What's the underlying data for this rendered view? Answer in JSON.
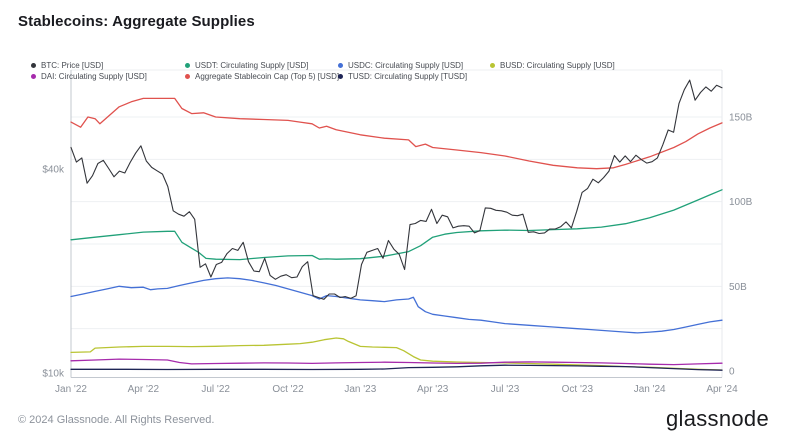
{
  "title": "Stablecoins: Aggregate Supplies",
  "footer": {
    "copyright": "© 2024 Glassnode. All Rights Reserved.",
    "brand": "glassnode"
  },
  "chart_data": {
    "type": "line",
    "title": "Stablecoins: Aggregate Supplies",
    "x_axis": {
      "unit": "months since Jan 2022",
      "range_months": [
        0,
        27
      ],
      "tick_months": [
        0,
        3,
        6,
        9,
        12,
        15,
        18,
        21,
        24,
        27
      ],
      "tick_labels": [
        "Jan '22",
        "Apr '22",
        "Jul '22",
        "Oct '22",
        "Jan '23",
        "Apr '23",
        "Jul '23",
        "Oct '23",
        "Jan '24",
        "Apr '24"
      ],
      "grid": false
    },
    "left_axis": {
      "scale": "log",
      "unit": "USD",
      "ticks": [
        {
          "label": "$40k",
          "value_k": 40
        },
        {
          "label": "$10k",
          "value_k": 10
        }
      ]
    },
    "right_axis": {
      "scale": "linear",
      "unit": "USD billions",
      "ticks": [
        {
          "label": "150B",
          "value_b": 150
        },
        {
          "label": "100B",
          "value_b": 100
        },
        {
          "label": "50B",
          "value_b": 50
        },
        {
          "label": "0",
          "value_b": 0
        }
      ],
      "minor_grid_step_b": 25,
      "grid": true
    },
    "legend_position": "top",
    "series": [
      {
        "name": "BTC: Price [USD]",
        "slug": "btc-price",
        "color": "#33353b",
        "axis": "left",
        "unit": "USD thousands",
        "x_range_months": [
          0,
          27
        ],
        "values": [
          46.3,
          41.9,
          43.1,
          36.3,
          38.2,
          41.5,
          42.4,
          40.1,
          37.9,
          39.4,
          38.9,
          41.8,
          44.5,
          46.8,
          42.2,
          40.4,
          39.5,
          38.6,
          35.5,
          30.1,
          29.4,
          29.0,
          29.9,
          28.4,
          20.5,
          21.0,
          19.2,
          20.9,
          21.2,
          22.5,
          23.3,
          23.0,
          24.3,
          21.3,
          20.0,
          19.9,
          21.8,
          19.4,
          18.9,
          19.3,
          19.5,
          19.1,
          19.2,
          20.6,
          21.3,
          16.9,
          16.7,
          16.5,
          17.1,
          17.1,
          16.7,
          16.8,
          16.6,
          16.9,
          20.9,
          22.7,
          23.0,
          23.3,
          21.8,
          24.6,
          23.2,
          22.4,
          20.2,
          27.4,
          27.6,
          28.2,
          28.0,
          30.4,
          27.6,
          29.2,
          28.9,
          26.8,
          27.1,
          27.2,
          27.1,
          25.9,
          26.3,
          30.7,
          30.6,
          30.2,
          30.1,
          29.8,
          29.2,
          29.1,
          29.4,
          26.0,
          26.1,
          25.8,
          25.9,
          26.6,
          26.6,
          27.0,
          27.9,
          26.8,
          30.0,
          34.1,
          35.0,
          37.3,
          36.4,
          37.7,
          39.4,
          43.8,
          41.9,
          43.7,
          42.0,
          43.9,
          42.6,
          41.6,
          42.0,
          43.1,
          47.1,
          52.1,
          51.3,
          62.4,
          68.5,
          73.1,
          63.8,
          67.2,
          69.8,
          67.8,
          70.6,
          69.4
        ]
      },
      {
        "name": "USDT: Circulating Supply [USD]",
        "slug": "usdt-supply",
        "color": "#21a179",
        "axis": "right",
        "unit": "USD billions",
        "x": [
          0,
          1,
          2,
          3,
          4,
          4.3,
          4.6,
          5,
          5.3,
          5.6,
          6,
          7,
          8,
          9,
          10,
          10.3,
          10.6,
          11,
          12,
          13,
          14,
          14.5,
          15,
          15.5,
          16,
          17,
          18,
          19,
          20,
          21,
          22,
          23,
          24,
          25,
          26,
          26.5,
          27
        ],
        "values": [
          77.5,
          79,
          80.5,
          82,
          82.5,
          82.5,
          76,
          72.5,
          70,
          66.5,
          66,
          65.8,
          67,
          68,
          68.2,
          66,
          66.2,
          66,
          66.3,
          67.8,
          70.5,
          74,
          79,
          80.8,
          81.8,
          82.8,
          83.2,
          83,
          83.5,
          84,
          85,
          87,
          90.5,
          95,
          101,
          104,
          107
        ]
      },
      {
        "name": "USDC: Circulating Supply [USD]",
        "slug": "usdc-supply",
        "color": "#4470d6",
        "axis": "right",
        "unit": "USD billions",
        "x": [
          0,
          0.5,
          1,
          1.5,
          2,
          2.5,
          3,
          3.3,
          3.6,
          4,
          4.5,
          5,
          5.5,
          6,
          6.5,
          7,
          7.5,
          8,
          8.5,
          9,
          9.5,
          10,
          10.3,
          10.6,
          11,
          11.5,
          12,
          12.5,
          13,
          13.5,
          14,
          14.2,
          14.4,
          14.7,
          15,
          15.5,
          16,
          16.5,
          17,
          17.5,
          18,
          19,
          20,
          21,
          21.5,
          22,
          23,
          23.5,
          24,
          24.5,
          25,
          25.5,
          26,
          26.5,
          27
        ],
        "values": [
          44,
          45.5,
          47,
          48.5,
          50,
          49.2,
          49.5,
          48,
          48.5,
          48.8,
          50.5,
          52,
          53.5,
          54.5,
          55,
          54.5,
          53.5,
          52,
          50.5,
          48.5,
          46.5,
          44.5,
          42.5,
          44.5,
          44,
          43,
          42,
          41.5,
          41,
          42,
          42.5,
          43.5,
          38,
          35,
          33.5,
          32.5,
          31.5,
          30.5,
          30,
          29,
          28,
          27,
          26,
          25,
          24.5,
          24,
          23,
          22.5,
          23,
          23.5,
          24.5,
          26,
          27.5,
          29,
          30
        ]
      },
      {
        "name": "BUSD: Circulating Supply [USD]",
        "slug": "busd-supply",
        "color": "#b9c433",
        "axis": "right",
        "unit": "USD billions",
        "x": [
          0,
          0.8,
          1,
          2,
          3,
          4,
          5,
          6,
          7,
          8,
          9,
          9.5,
          10,
          10.5,
          11,
          11.3,
          11.5,
          12,
          12.5,
          13,
          13.5,
          13.8,
          14.2,
          14.5,
          15,
          16,
          17,
          18,
          19,
          20,
          21,
          22,
          23,
          24,
          25,
          26,
          27
        ],
        "values": [
          11,
          11.3,
          13.5,
          14.2,
          14.5,
          14.5,
          14.4,
          14.6,
          15,
          15.2,
          15.8,
          16.2,
          17,
          18.5,
          19.5,
          19,
          17.5,
          14.5,
          14.2,
          14,
          13.8,
          12,
          8.5,
          6.5,
          5.8,
          5.3,
          5,
          4.8,
          4.4,
          4,
          3.6,
          3.2,
          2.6,
          2.2,
          1.6,
          1,
          0.6
        ]
      },
      {
        "name": "DAI: Circulating Supply [USD]",
        "slug": "dai-supply",
        "color": "#a62bac",
        "axis": "right",
        "unit": "USD billions",
        "x": [
          0,
          1,
          2,
          3,
          4,
          4.5,
          5,
          6,
          7,
          8,
          9,
          10,
          11,
          12,
          13,
          14,
          15,
          16,
          17,
          18,
          19,
          20,
          21,
          22,
          23,
          24,
          25,
          26,
          27
        ],
        "values": [
          6,
          6.5,
          7,
          6.8,
          6.5,
          5,
          4.2,
          4.4,
          4.6,
          4.8,
          4.7,
          4.5,
          4.8,
          5,
          5.2,
          5,
          4.7,
          4.5,
          4.6,
          5.2,
          5.4,
          5.2,
          5,
          4.8,
          4.4,
          4,
          3.8,
          4.2,
          4.6
        ]
      },
      {
        "name": "Aggregate Stablecoin Cap (Top 5) [USD]",
        "slug": "aggregate-stablecoin-cap",
        "color": "#e0524e",
        "axis": "right",
        "unit": "USD billions",
        "x": [
          0,
          0.4,
          0.7,
          1,
          1.2,
          2,
          2.5,
          3,
          4.3,
          4.6,
          5,
          5.5,
          6,
          7,
          8,
          9,
          9.5,
          10,
          10.3,
          10.6,
          11,
          12,
          13,
          14,
          14.3,
          14.7,
          15,
          16,
          17,
          18,
          19,
          20,
          21,
          21.8,
          22.5,
          23,
          24,
          25,
          25.5,
          26,
          26.5,
          27
        ],
        "values": [
          147,
          144,
          150,
          149,
          146,
          156,
          159,
          161,
          161,
          155,
          152,
          152.5,
          150,
          149,
          148.5,
          148,
          147,
          146,
          143.5,
          144.5,
          142.5,
          139.5,
          137.5,
          136.5,
          132.5,
          134,
          132,
          130.5,
          129,
          127,
          124,
          121.5,
          120,
          119.5,
          120,
          122,
          126.5,
          132,
          135.5,
          140,
          143.5,
          146.5
        ]
      },
      {
        "name": "TUSD: Circulating Supply [TUSD]",
        "slug": "tusd-supply",
        "color": "#1f2556",
        "axis": "right",
        "unit": "USD billions",
        "x": [
          0,
          2,
          4,
          6,
          8,
          10,
          12,
          13,
          14,
          15,
          16,
          17,
          18,
          19,
          20,
          21,
          22,
          23,
          24,
          25,
          26,
          27
        ],
        "values": [
          1,
          1,
          0.9,
          1,
          1,
          0.9,
          1,
          1.2,
          2,
          2.2,
          2.5,
          3.1,
          3.4,
          3.3,
          3.2,
          3,
          2.8,
          2.6,
          2,
          1.4,
          0.8,
          0.5
        ]
      }
    ]
  }
}
